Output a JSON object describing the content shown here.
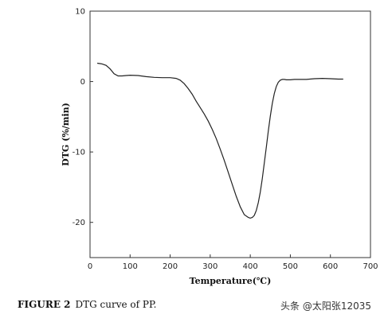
{
  "chart_data": {
    "type": "line",
    "title": "",
    "xlabel": "Temperature(℃)",
    "ylabel": "DTG (%/min)",
    "xlim": [
      0,
      700
    ],
    "ylim": [
      -25,
      10
    ],
    "xticks": [
      0,
      100,
      200,
      300,
      400,
      500,
      600,
      700
    ],
    "yticks": [
      10,
      0,
      -10,
      -20
    ],
    "grid": false,
    "legend": "none",
    "line_color": "#222222",
    "series": [
      {
        "x": [
          18,
          30,
          40,
          50,
          60,
          70,
          80,
          90,
          100,
          120,
          140,
          160,
          180,
          200,
          215,
          225,
          235,
          245,
          255,
          265,
          275,
          285,
          295,
          305,
          315,
          325,
          335,
          345,
          355,
          365,
          375,
          385,
          395,
          400,
          405,
          410,
          415,
          420,
          425,
          430,
          435,
          440,
          445,
          450,
          455,
          460,
          465,
          470,
          475,
          480,
          485,
          490,
          495,
          500,
          510,
          520,
          540,
          560,
          580,
          600,
          620,
          632
        ],
        "y": [
          2.6,
          2.5,
          2.3,
          1.8,
          1.1,
          0.8,
          0.8,
          0.85,
          0.9,
          0.85,
          0.7,
          0.6,
          0.55,
          0.55,
          0.45,
          0.2,
          -0.3,
          -1.0,
          -1.8,
          -2.8,
          -3.7,
          -4.6,
          -5.6,
          -6.8,
          -8.1,
          -9.6,
          -11.2,
          -12.9,
          -14.6,
          -16.3,
          -17.8,
          -18.9,
          -19.3,
          -19.4,
          -19.3,
          -19.0,
          -18.3,
          -17.2,
          -15.7,
          -13.8,
          -11.6,
          -9.3,
          -7.0,
          -4.9,
          -3.1,
          -1.7,
          -0.7,
          -0.1,
          0.2,
          0.3,
          0.3,
          0.25,
          0.25,
          0.25,
          0.3,
          0.3,
          0.3,
          0.4,
          0.45,
          0.4,
          0.35,
          0.35
        ]
      }
    ]
  },
  "caption": {
    "figure_label": "FIGURE 2",
    "text": "DTG curve of PP."
  },
  "watermark": "头条 @太阳张12035"
}
